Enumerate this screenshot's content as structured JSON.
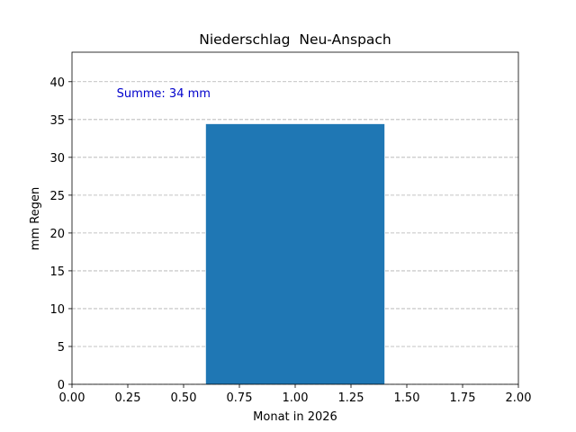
{
  "chart_data": {
    "type": "bar",
    "title": "Niederschlag  Neu-Anspach",
    "x_label": "Monat in 2026",
    "y_label": "mm Regen",
    "annotation": "Summe: 34 mm",
    "x": [
      1
    ],
    "values": [
      34.4
    ],
    "bar_width": 0.8,
    "color": "#1f77b4",
    "annotation_color": "#0000cc",
    "xlim": [
      0,
      2
    ],
    "ylim": [
      0,
      43.9
    ],
    "xticks": [
      {
        "value": 0,
        "label": "0.00"
      },
      {
        "value": 0.25,
        "label": "0.25"
      },
      {
        "value": 0.5,
        "label": "0.50"
      },
      {
        "value": 0.75,
        "label": "0.75"
      },
      {
        "value": 1,
        "label": "1.00"
      },
      {
        "value": 1.25,
        "label": "1.25"
      },
      {
        "value": 1.5,
        "label": "1.50"
      },
      {
        "value": 1.75,
        "label": "1.75"
      },
      {
        "value": 2,
        "label": "2.00"
      }
    ],
    "yticks": [
      0,
      5,
      10,
      15,
      20,
      25,
      30,
      35,
      40
    ],
    "grid": "y"
  }
}
